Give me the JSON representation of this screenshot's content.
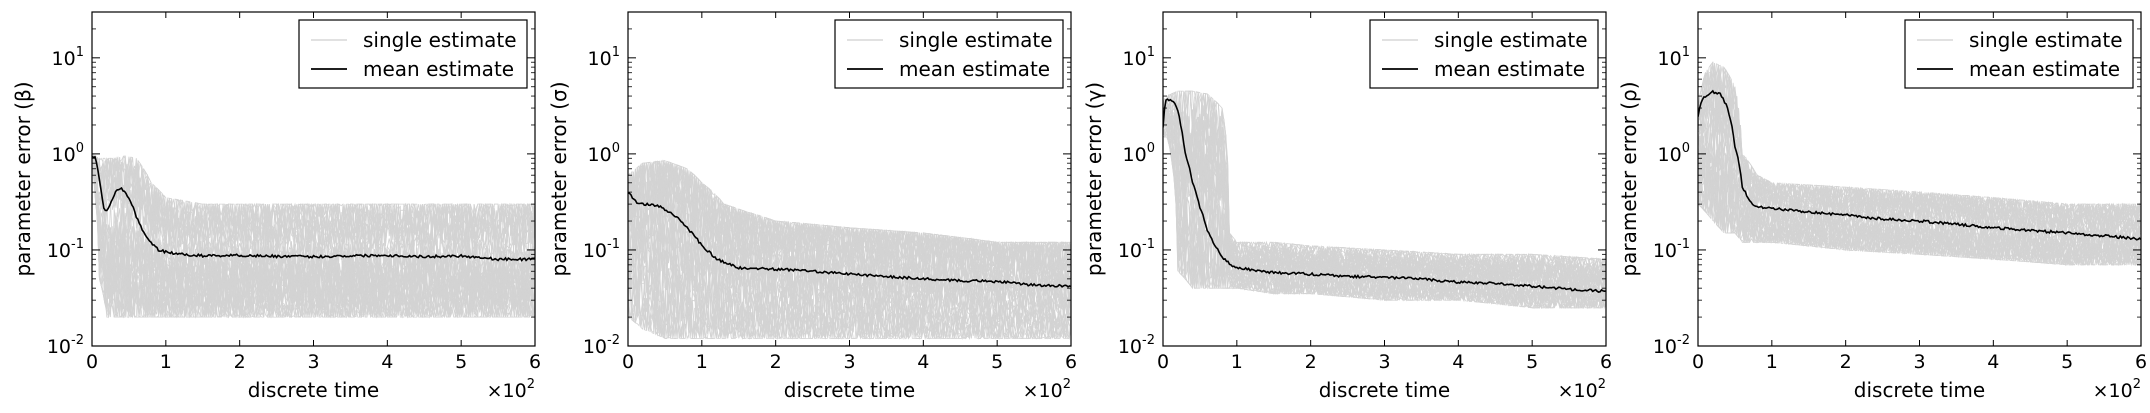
{
  "chart_data": [
    {
      "type": "line",
      "scale": "log",
      "xlabel": "discrete time",
      "ylabel": "parameter error (β)",
      "x_multiplier_label": "×10",
      "x_multiplier_exp": "2",
      "xlim": [
        0,
        6
      ],
      "ylim": [
        0.01,
        30
      ],
      "xticks": [
        0,
        1,
        2,
        3,
        4,
        5,
        6
      ],
      "xtick_labels": [
        "0",
        "1",
        "2",
        "3",
        "4",
        "5",
        "6"
      ],
      "yticks": [
        0.01,
        0.1,
        1,
        10
      ],
      "ytick_labels": [
        [
          "10",
          "-2"
        ],
        [
          "10",
          "-1"
        ],
        [
          "10",
          "0"
        ],
        [
          "10",
          "1"
        ]
      ],
      "legend": {
        "position": "top-right",
        "entries": [
          "single estimate",
          "mean estimate"
        ]
      },
      "series": [
        {
          "name": "single estimate",
          "color": "#cfcfcf",
          "band": true,
          "x": [
            0,
            0.05,
            0.1,
            0.2,
            0.3,
            0.45,
            0.6,
            0.8,
            1.0,
            1.5,
            2.0,
            3.0,
            4.0,
            5.0,
            6.0
          ],
          "upper": [
            1.0,
            0.95,
            0.9,
            0.9,
            0.9,
            0.95,
            0.9,
            0.5,
            0.35,
            0.3,
            0.3,
            0.3,
            0.3,
            0.3,
            0.3
          ],
          "lower": [
            0.8,
            0.3,
            0.05,
            0.02,
            0.02,
            0.02,
            0.02,
            0.02,
            0.02,
            0.02,
            0.02,
            0.02,
            0.02,
            0.02,
            0.02
          ]
        },
        {
          "name": "mean estimate",
          "color": "#000000",
          "x": [
            0,
            0.05,
            0.1,
            0.15,
            0.2,
            0.25,
            0.3,
            0.35,
            0.4,
            0.45,
            0.5,
            0.6,
            0.7,
            0.8,
            0.9,
            1.0,
            1.2,
            1.5,
            2.0,
            2.5,
            3.0,
            3.5,
            4.0,
            4.5,
            5.0,
            5.5,
            6.0
          ],
          "y": [
            0.95,
            0.9,
            0.55,
            0.28,
            0.25,
            0.3,
            0.38,
            0.42,
            0.43,
            0.4,
            0.35,
            0.22,
            0.15,
            0.12,
            0.1,
            0.095,
            0.09,
            0.087,
            0.088,
            0.086,
            0.085,
            0.087,
            0.088,
            0.085,
            0.087,
            0.08,
            0.08
          ]
        }
      ]
    },
    {
      "type": "line",
      "scale": "log",
      "xlabel": "discrete time",
      "ylabel": "parameter error (σ)",
      "x_multiplier_label": "×10",
      "x_multiplier_exp": "2",
      "xlim": [
        0,
        6
      ],
      "ylim": [
        0.01,
        30
      ],
      "xticks": [
        0,
        1,
        2,
        3,
        4,
        5,
        6
      ],
      "xtick_labels": [
        "0",
        "1",
        "2",
        "3",
        "4",
        "5",
        "6"
      ],
      "yticks": [
        0.01,
        0.1,
        1,
        10
      ],
      "ytick_labels": [
        [
          "10",
          "-2"
        ],
        [
          "10",
          "-1"
        ],
        [
          "10",
          "0"
        ],
        [
          "10",
          "1"
        ]
      ],
      "legend": {
        "position": "top-right",
        "entries": [
          "single estimate",
          "mean estimate"
        ]
      },
      "series": [
        {
          "name": "single estimate",
          "color": "#cfcfcf",
          "band": true,
          "x": [
            0,
            0.2,
            0.5,
            0.8,
            1.0,
            1.3,
            1.6,
            2.0,
            3.0,
            4.0,
            5.0,
            6.0
          ],
          "upper": [
            0.6,
            0.8,
            0.85,
            0.7,
            0.5,
            0.3,
            0.25,
            0.2,
            0.17,
            0.15,
            0.12,
            0.12
          ],
          "lower": [
            0.02,
            0.015,
            0.012,
            0.012,
            0.012,
            0.012,
            0.012,
            0.012,
            0.012,
            0.012,
            0.012,
            0.012
          ]
        },
        {
          "name": "mean estimate",
          "color": "#000000",
          "x": [
            0,
            0.1,
            0.2,
            0.4,
            0.6,
            0.8,
            1.0,
            1.2,
            1.5,
            2.0,
            2.5,
            3.0,
            3.5,
            4.0,
            4.5,
            5.0,
            5.5,
            6.0
          ],
          "y": [
            0.4,
            0.32,
            0.3,
            0.29,
            0.24,
            0.17,
            0.11,
            0.08,
            0.065,
            0.063,
            0.06,
            0.056,
            0.053,
            0.05,
            0.048,
            0.047,
            0.043,
            0.042
          ]
        }
      ]
    },
    {
      "type": "line",
      "scale": "log",
      "xlabel": "discrete time",
      "ylabel": "parameter error (γ)",
      "x_multiplier_label": "×10",
      "x_multiplier_exp": "2",
      "xlim": [
        0,
        6
      ],
      "ylim": [
        0.01,
        30
      ],
      "xticks": [
        0,
        1,
        2,
        3,
        4,
        5,
        6
      ],
      "xtick_labels": [
        "0",
        "1",
        "2",
        "3",
        "4",
        "5",
        "6"
      ],
      "yticks": [
        0.01,
        0.1,
        1,
        10
      ],
      "ytick_labels": [
        [
          "10",
          "-2"
        ],
        [
          "10",
          "-1"
        ],
        [
          "10",
          "0"
        ],
        [
          "10",
          "1"
        ]
      ],
      "legend": {
        "position": "top-right",
        "entries": [
          "single estimate",
          "mean estimate"
        ]
      },
      "series": [
        {
          "name": "single estimate",
          "color": "#cfcfcf",
          "band": true,
          "x": [
            0,
            0.05,
            0.2,
            0.4,
            0.6,
            0.8,
            0.9,
            1.0,
            1.5,
            2.0,
            3.0,
            4.0,
            5.0,
            6.0
          ],
          "upper": [
            3.5,
            4.0,
            4.5,
            4.5,
            4.2,
            3.0,
            0.15,
            0.12,
            0.12,
            0.11,
            0.1,
            0.09,
            0.09,
            0.08
          ],
          "lower": [
            1.5,
            1.5,
            0.06,
            0.04,
            0.04,
            0.04,
            0.04,
            0.04,
            0.035,
            0.035,
            0.03,
            0.03,
            0.025,
            0.025
          ]
        },
        {
          "name": "mean estimate",
          "color": "#000000",
          "x": [
            0,
            0.03,
            0.05,
            0.15,
            0.2,
            0.25,
            0.3,
            0.4,
            0.5,
            0.6,
            0.7,
            0.8,
            0.9,
            1.0,
            1.5,
            2.0,
            2.5,
            3.0,
            3.5,
            4.0,
            4.5,
            5.0,
            5.5,
            6.0
          ],
          "y": [
            1.9,
            3.5,
            3.7,
            3.6,
            2.8,
            1.8,
            1.0,
            0.5,
            0.28,
            0.16,
            0.11,
            0.085,
            0.072,
            0.065,
            0.058,
            0.056,
            0.053,
            0.052,
            0.05,
            0.046,
            0.045,
            0.042,
            0.039,
            0.037
          ]
        }
      ]
    },
    {
      "type": "line",
      "scale": "log",
      "xlabel": "discrete time",
      "ylabel": "parameter error (ρ)",
      "x_multiplier_label": "×10",
      "x_multiplier_exp": "2",
      "xlim": [
        0,
        6
      ],
      "ylim": [
        0.01,
        30
      ],
      "xticks": [
        0,
        1,
        2,
        3,
        4,
        5,
        6
      ],
      "xtick_labels": [
        "0",
        "1",
        "2",
        "3",
        "4",
        "5",
        "6"
      ],
      "yticks": [
        0.01,
        0.1,
        1,
        10
      ],
      "ytick_labels": [
        [
          "10",
          "-2"
        ],
        [
          "10",
          "-1"
        ],
        [
          "10",
          "0"
        ],
        [
          "10",
          "1"
        ]
      ],
      "legend": {
        "position": "top-right",
        "entries": [
          "single estimate",
          "mean estimate"
        ]
      },
      "series": [
        {
          "name": "single estimate",
          "color": "#cfcfcf",
          "band": true,
          "x": [
            0,
            0.1,
            0.2,
            0.35,
            0.5,
            0.6,
            0.8,
            1.0,
            2.0,
            3.0,
            4.0,
            5.0,
            6.0
          ],
          "upper": [
            3.0,
            7.0,
            9.0,
            8.0,
            5.0,
            1.0,
            0.6,
            0.5,
            0.45,
            0.4,
            0.35,
            0.3,
            0.3
          ],
          "lower": [
            0.3,
            0.25,
            0.2,
            0.15,
            0.15,
            0.12,
            0.12,
            0.12,
            0.1,
            0.09,
            0.08,
            0.07,
            0.07
          ]
        },
        {
          "name": "mean estimate",
          "color": "#000000",
          "x": [
            0,
            0.05,
            0.1,
            0.2,
            0.3,
            0.4,
            0.5,
            0.6,
            0.7,
            0.8,
            1.0,
            1.5,
            2.0,
            2.5,
            3.0,
            3.5,
            4.0,
            4.5,
            5.0,
            5.5,
            6.0
          ],
          "y": [
            2.5,
            3.5,
            4.0,
            4.4,
            4.2,
            3.0,
            1.2,
            0.45,
            0.32,
            0.28,
            0.27,
            0.25,
            0.23,
            0.21,
            0.2,
            0.185,
            0.17,
            0.16,
            0.15,
            0.14,
            0.13
          ]
        }
      ]
    }
  ]
}
